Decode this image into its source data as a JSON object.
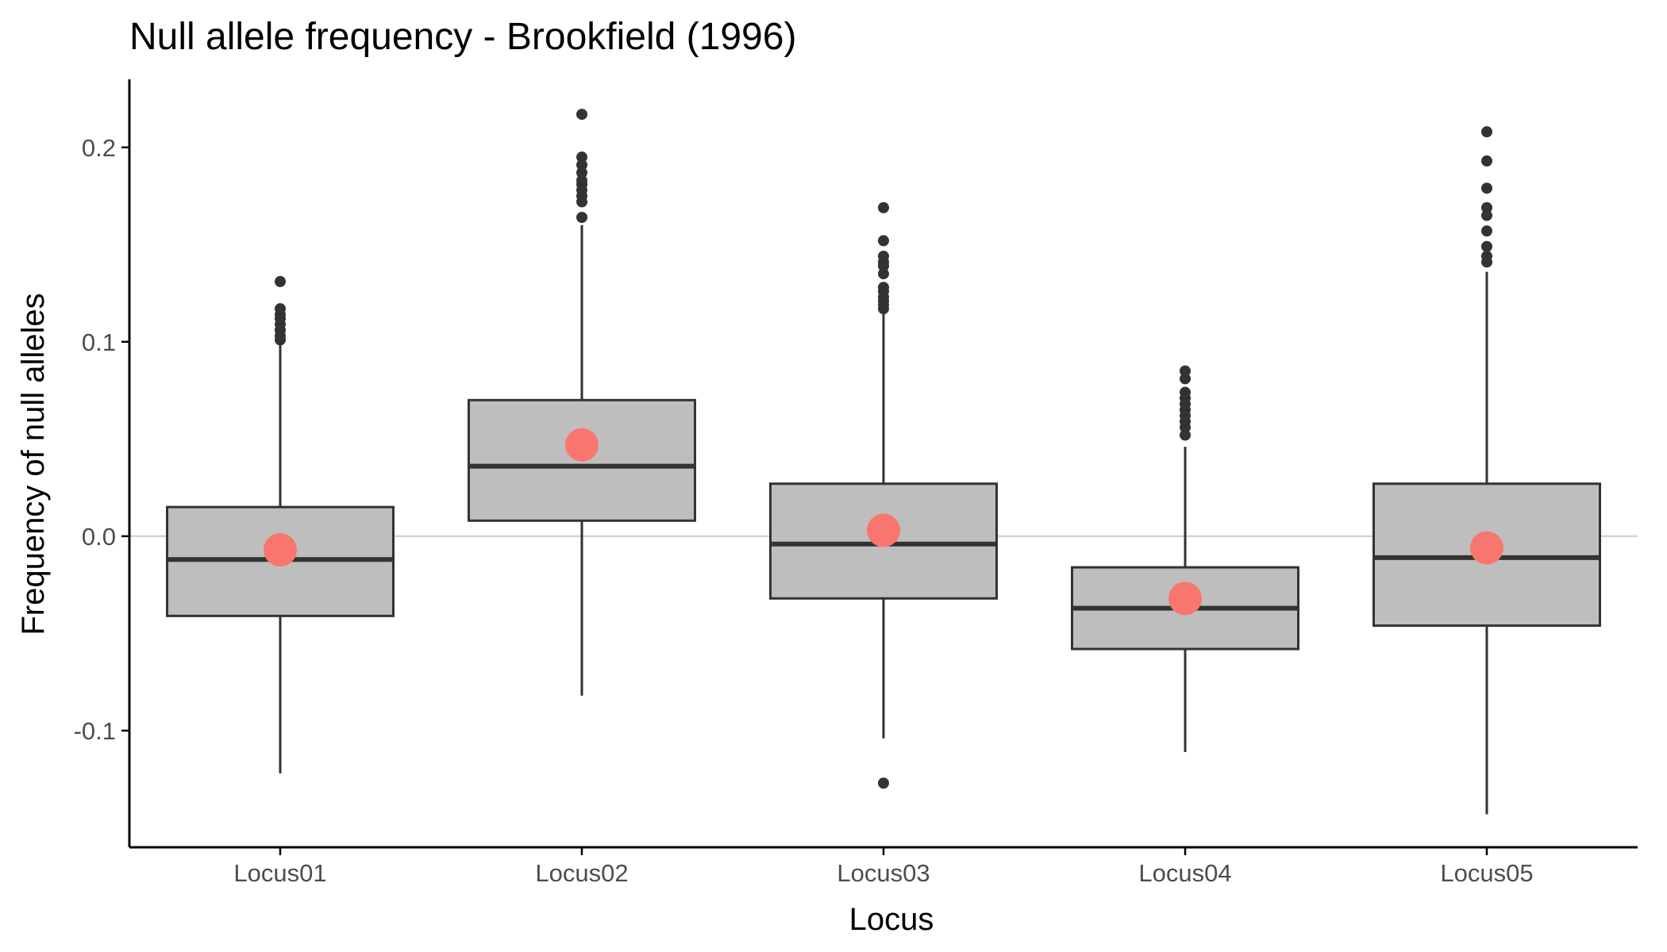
{
  "chart_data": {
    "type": "boxplot",
    "title": "Null allele frequency - Brookfield (1996)",
    "xlabel": "Locus",
    "ylabel": "Frequency of null alleles",
    "ylim": [
      -0.16,
      0.235
    ],
    "yticks": [
      -0.1,
      0.0,
      0.1,
      0.2
    ],
    "ytick_labels": [
      "-0.1",
      "0.0",
      "0.1",
      "0.2"
    ],
    "reference_line": 0.0,
    "grid": false,
    "categories": [
      "Locus01",
      "Locus02",
      "Locus03",
      "Locus04",
      "Locus05"
    ],
    "boxes": [
      {
        "category": "Locus01",
        "whisker_low": -0.122,
        "q1": -0.041,
        "median": -0.012,
        "q3": 0.015,
        "whisker_high": 0.099,
        "mean": -0.007,
        "outliers": [
          0.101,
          0.103,
          0.106,
          0.109,
          0.112,
          0.114,
          0.117,
          0.131
        ]
      },
      {
        "category": "Locus02",
        "whisker_low": -0.082,
        "q1": 0.008,
        "median": 0.036,
        "q3": 0.07,
        "whisker_high": 0.16,
        "mean": 0.047,
        "outliers": [
          0.164,
          0.172,
          0.175,
          0.178,
          0.181,
          0.183,
          0.187,
          0.191,
          0.195,
          0.217
        ]
      },
      {
        "category": "Locus03",
        "whisker_low": -0.104,
        "q1": -0.032,
        "median": -0.004,
        "q3": 0.027,
        "whisker_high": 0.115,
        "mean": 0.003,
        "outliers": [
          -0.127,
          0.117,
          0.119,
          0.121,
          0.123,
          0.126,
          0.128,
          0.135,
          0.139,
          0.141,
          0.144,
          0.152,
          0.169
        ]
      },
      {
        "category": "Locus04",
        "whisker_low": -0.111,
        "q1": -0.058,
        "median": -0.037,
        "q3": -0.016,
        "whisker_high": 0.046,
        "mean": -0.032,
        "outliers": [
          0.052,
          0.056,
          0.059,
          0.062,
          0.065,
          0.068,
          0.071,
          0.074,
          0.081,
          0.085
        ]
      },
      {
        "category": "Locus05",
        "whisker_low": -0.143,
        "q1": -0.046,
        "median": -0.011,
        "q3": 0.027,
        "whisker_high": 0.136,
        "mean": -0.006,
        "outliers": [
          0.141,
          0.144,
          0.149,
          0.157,
          0.165,
          0.169,
          0.179,
          0.193,
          0.208
        ]
      }
    ],
    "colors": {
      "box_fill": "#bebebe",
      "box_stroke": "#333333",
      "outlier": "#333333",
      "mean_point": "#f8766d",
      "reference_line": "#d3d3d3",
      "axis": "#000000"
    }
  }
}
